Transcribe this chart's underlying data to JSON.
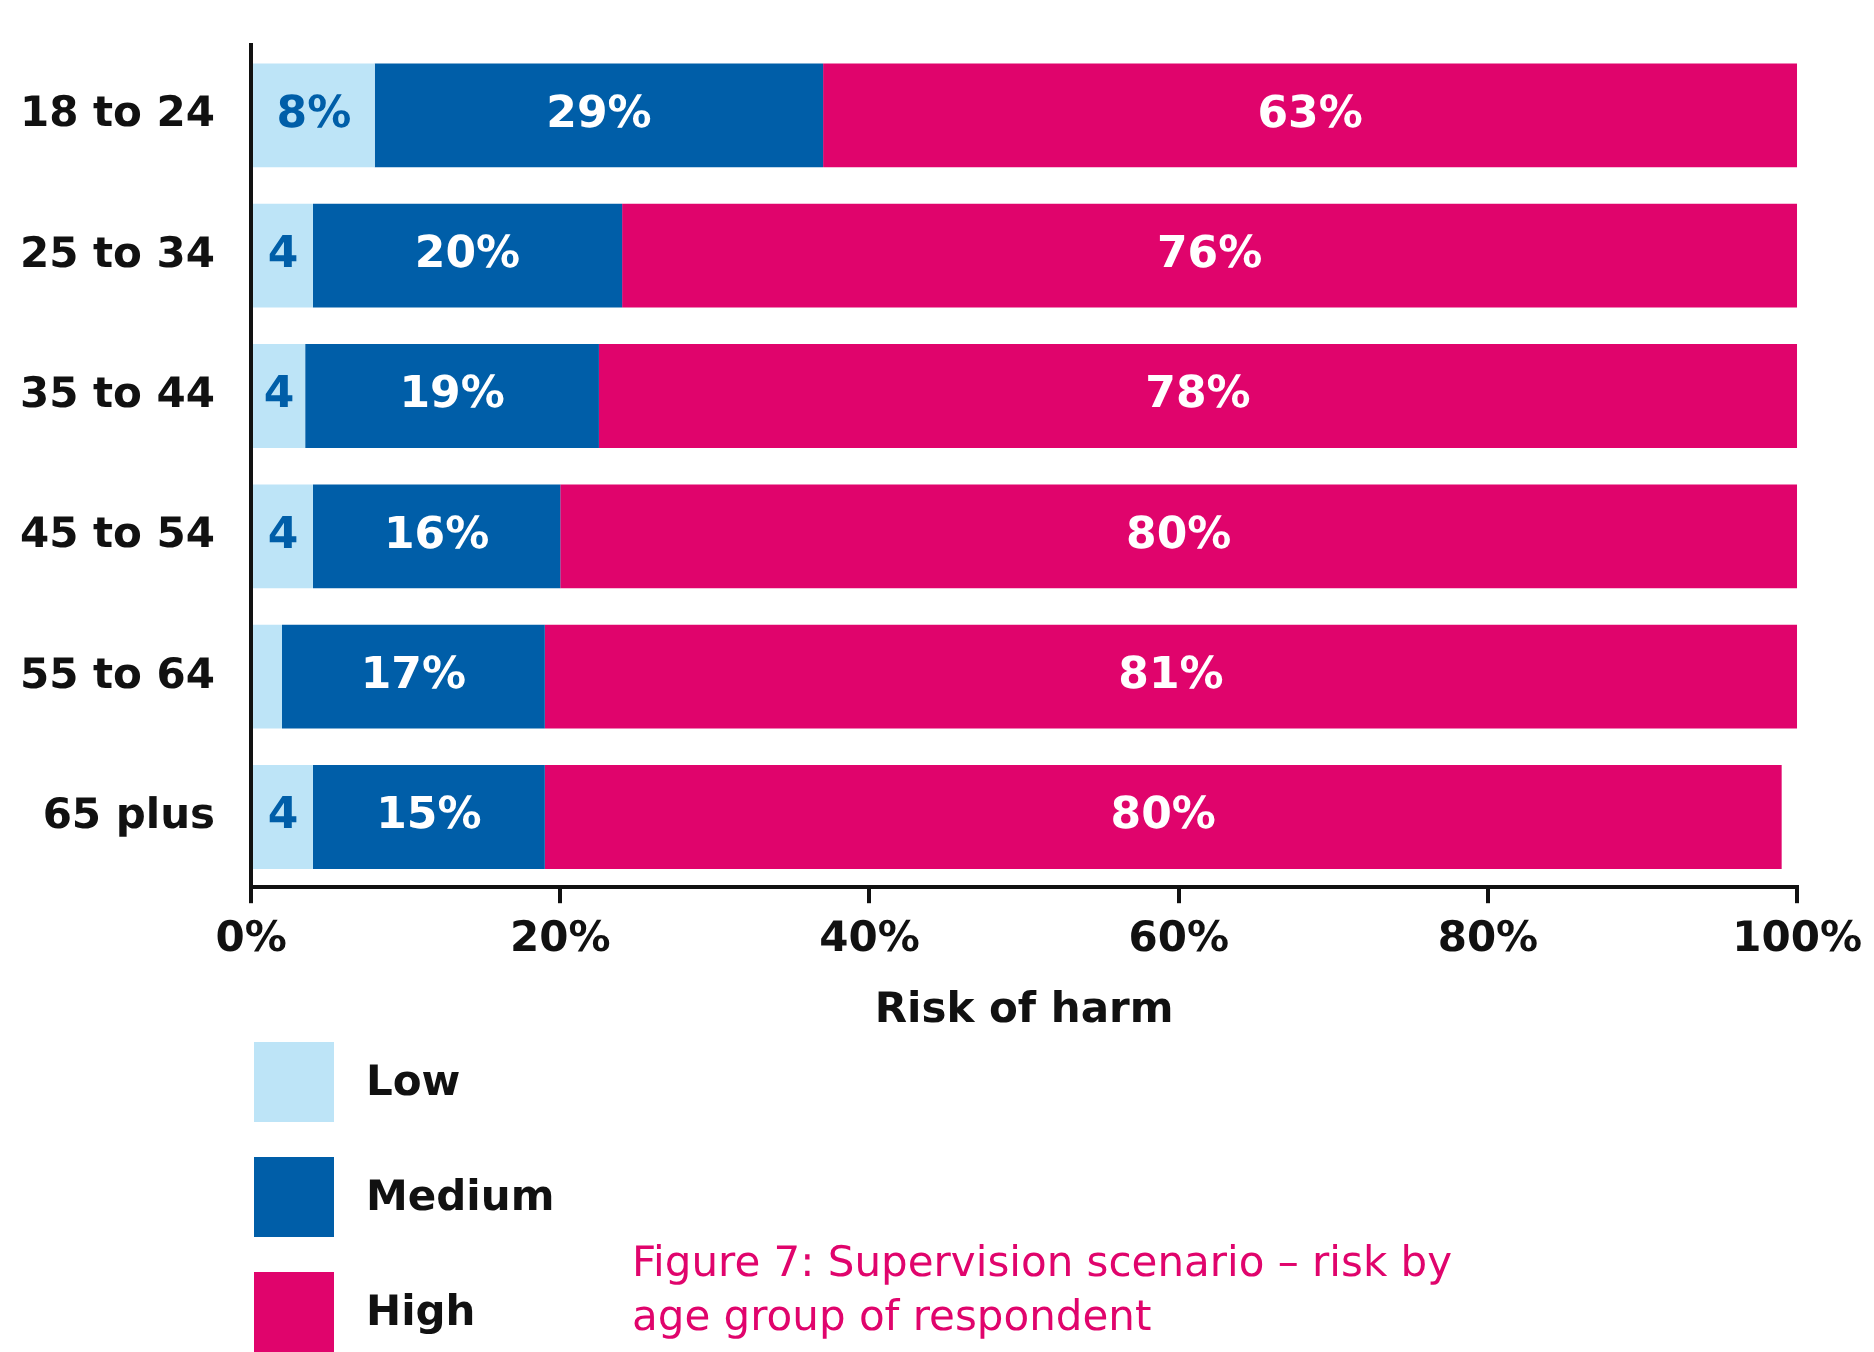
{
  "chart_data": {
    "type": "bar",
    "orientation": "horizontal",
    "stacked": true,
    "categories": [
      "18 to 24",
      "25 to 34",
      "35 to 44",
      "45 to 54",
      "55 to 64",
      "65 plus"
    ],
    "series": [
      {
        "name": "Low",
        "color": "#bde4f7",
        "values": [
          8,
          4,
          3.5,
          4,
          2,
          4
        ],
        "value_labels": [
          "8%",
          "4",
          "4",
          "4",
          null,
          "4"
        ]
      },
      {
        "name": "Medium",
        "color": "#005ea8",
        "values": [
          29,
          20,
          19,
          16,
          17,
          15
        ],
        "value_labels": [
          "29%",
          "20%",
          "19%",
          "16%",
          "17%",
          "15%"
        ]
      },
      {
        "name": "High",
        "color": "#e0046c",
        "values": [
          63,
          76,
          77.5,
          80,
          81,
          80
        ],
        "value_labels": [
          "63%",
          "76%",
          "78%",
          "80%",
          "81%",
          "80%"
        ]
      }
    ],
    "xlim": [
      0,
      100
    ],
    "xticks": [
      {
        "value": 0,
        "label": "0%"
      },
      {
        "value": 20,
        "label": "20%"
      },
      {
        "value": 40,
        "label": "40%"
      },
      {
        "value": 60,
        "label": "60%"
      },
      {
        "value": 80,
        "label": "80%"
      },
      {
        "value": 100,
        "label": "100%"
      }
    ],
    "xlabel": "Risk of harm",
    "grid": false,
    "legend": "bottom left",
    "annotations": [
      "Figure 7: Supervision scenario – risk by age group of respondent"
    ]
  }
}
